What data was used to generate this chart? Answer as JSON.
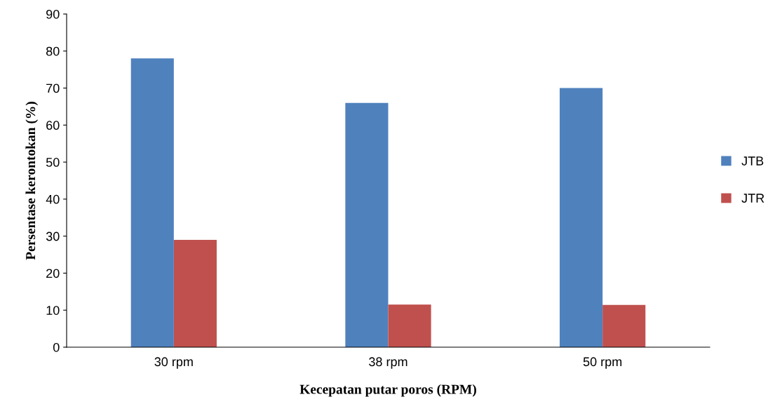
{
  "chart_data": {
    "type": "bar",
    "xlabel": "Kecepatan putar poros (RPM)",
    "ylabel": "Persentase kerontokan (%)",
    "categories": [
      "30 rpm",
      "38 rpm",
      "50 rpm"
    ],
    "series": [
      {
        "name": "JTB",
        "color": "#4f81bd",
        "values": [
          78,
          66,
          70
        ]
      },
      {
        "name": "JTR",
        "color": "#c0504d",
        "values": [
          29,
          11.5,
          11.4
        ]
      }
    ],
    "ylim": [
      0,
      90
    ],
    "yticks": [
      0,
      10,
      20,
      30,
      40,
      50,
      60,
      70,
      80,
      90
    ],
    "grid": false,
    "legend": "right"
  }
}
